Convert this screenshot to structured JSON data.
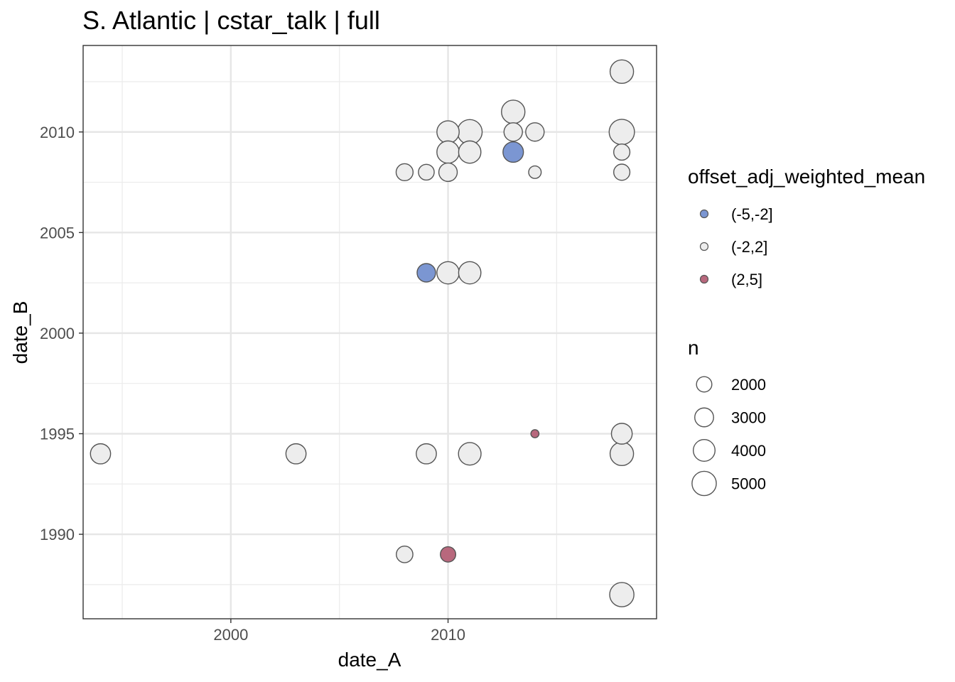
{
  "chart_data": {
    "type": "scatter",
    "title": "S. Atlantic | cstar_talk | full",
    "xlabel": "date_A",
    "ylabel": "date_B",
    "xlim": [
      1993.2,
      2019.6
    ],
    "ylim": [
      1985.8,
      2014.3
    ],
    "x_ticks": [
      2000,
      2010
    ],
    "y_ticks": [
      1990,
      1995,
      2000,
      2005,
      2010
    ],
    "grid": true,
    "legend_position": "right",
    "color_legend": {
      "title": "offset_adj_weighted_mean",
      "entries": [
        {
          "label": "(-5,-2]",
          "color": "#7b96d2"
        },
        {
          "label": "(-2,2]",
          "color": "#ededed"
        },
        {
          "label": "(2,5]",
          "color": "#b8687d"
        }
      ]
    },
    "size_legend": {
      "title": "n",
      "entries": [
        {
          "label": "2000",
          "value": 2000
        },
        {
          "label": "3000",
          "value": 3000
        },
        {
          "label": "4000",
          "value": 4000
        },
        {
          "label": "5000",
          "value": 5000
        }
      ]
    },
    "points": [
      {
        "x": 2018,
        "y": 2013,
        "n": 4200,
        "group": "(-2,2]"
      },
      {
        "x": 2013,
        "y": 2011,
        "n": 4200,
        "group": "(-2,2]"
      },
      {
        "x": 2010,
        "y": 2010,
        "n": 3800,
        "group": "(-2,2]"
      },
      {
        "x": 2011,
        "y": 2010,
        "n": 4700,
        "group": "(-2,2]"
      },
      {
        "x": 2013,
        "y": 2010,
        "n": 2600,
        "group": "(-2,2]"
      },
      {
        "x": 2014,
        "y": 2010,
        "n": 2600,
        "group": "(-2,2]"
      },
      {
        "x": 2018,
        "y": 2010,
        "n": 4900,
        "group": "(-2,2]"
      },
      {
        "x": 2010,
        "y": 2009,
        "n": 3800,
        "group": "(-2,2]"
      },
      {
        "x": 2011,
        "y": 2009,
        "n": 3800,
        "group": "(-2,2]"
      },
      {
        "x": 2013,
        "y": 2009,
        "n": 3200,
        "group": "(-5,-2]"
      },
      {
        "x": 2018,
        "y": 2009,
        "n": 2000,
        "group": "(-2,2]"
      },
      {
        "x": 2008,
        "y": 2008,
        "n": 2200,
        "group": "(-2,2]"
      },
      {
        "x": 2009,
        "y": 2008,
        "n": 1900,
        "group": "(-2,2]"
      },
      {
        "x": 2010,
        "y": 2008,
        "n": 2600,
        "group": "(-2,2]"
      },
      {
        "x": 2014,
        "y": 2008,
        "n": 1200,
        "group": "(-2,2]"
      },
      {
        "x": 2018,
        "y": 2008,
        "n": 2000,
        "group": "(-2,2]"
      },
      {
        "x": 2009,
        "y": 2003,
        "n": 2600,
        "group": "(-5,-2]"
      },
      {
        "x": 2010,
        "y": 2003,
        "n": 3800,
        "group": "(-2,2]"
      },
      {
        "x": 2011,
        "y": 2003,
        "n": 3800,
        "group": "(-2,2]"
      },
      {
        "x": 2014,
        "y": 1995,
        "n": 500,
        "group": "(2,5]"
      },
      {
        "x": 2018,
        "y": 1995,
        "n": 3300,
        "group": "(-2,2]"
      },
      {
        "x": 1994,
        "y": 1994,
        "n": 3100,
        "group": "(-2,2]"
      },
      {
        "x": 2003,
        "y": 1994,
        "n": 3100,
        "group": "(-2,2]"
      },
      {
        "x": 2009,
        "y": 1994,
        "n": 3100,
        "group": "(-2,2]"
      },
      {
        "x": 2011,
        "y": 1994,
        "n": 3900,
        "group": "(-2,2]"
      },
      {
        "x": 2018,
        "y": 1994,
        "n": 4200,
        "group": "(-2,2]"
      },
      {
        "x": 2008,
        "y": 1989,
        "n": 2100,
        "group": "(-2,2]"
      },
      {
        "x": 2010,
        "y": 1989,
        "n": 1800,
        "group": "(2,5]"
      },
      {
        "x": 2018,
        "y": 1987,
        "n": 4500,
        "group": "(-2,2]"
      }
    ]
  }
}
